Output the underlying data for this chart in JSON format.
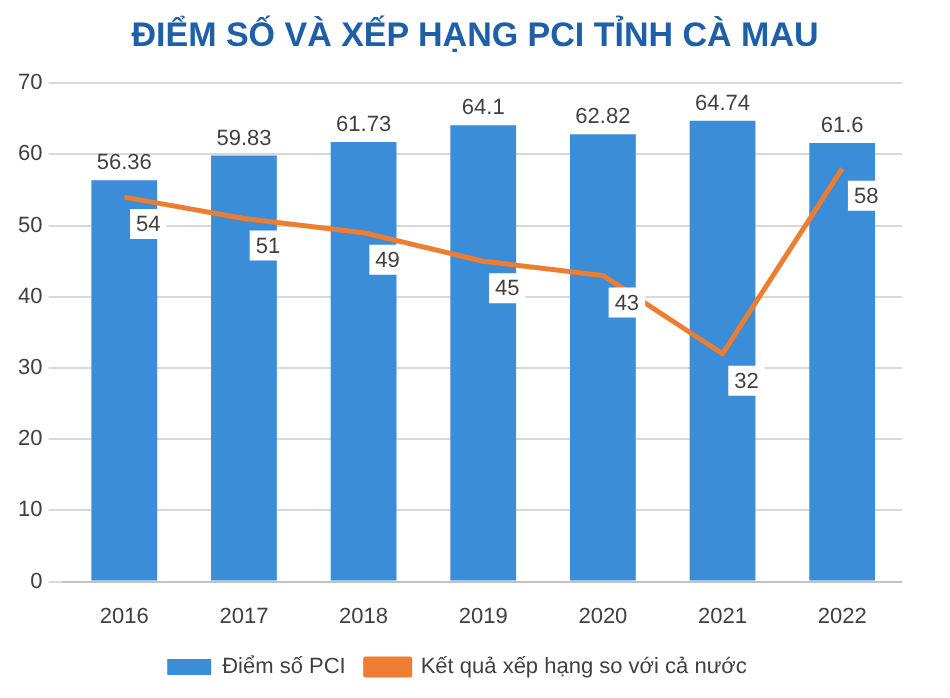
{
  "chart_data": {
    "type": "bar",
    "title": "ĐIỂM SỐ VÀ XẾP HẠNG PCI TỈNH CÀ MAU",
    "categories": [
      "2016",
      "2017",
      "2018",
      "2019",
      "2020",
      "2021",
      "2022"
    ],
    "series": [
      {
        "name": "Điểm số PCI",
        "color": "#3c8dd8",
        "values": [
          56.36,
          59.83,
          61.73,
          64.1,
          62.82,
          64.74,
          61.6
        ]
      },
      {
        "name": "Kết quả xếp hạng so với cả nước",
        "type": "line",
        "color": "#ed7d31",
        "values": [
          54,
          51,
          49,
          45,
          43,
          32,
          58
        ]
      }
    ],
    "ylim": [
      0,
      70
    ],
    "yticks": [
      0,
      10,
      20,
      30,
      40,
      50,
      60,
      70
    ],
    "grid": "y",
    "legend": "bottom",
    "data_labels": true,
    "marker": "none"
  }
}
